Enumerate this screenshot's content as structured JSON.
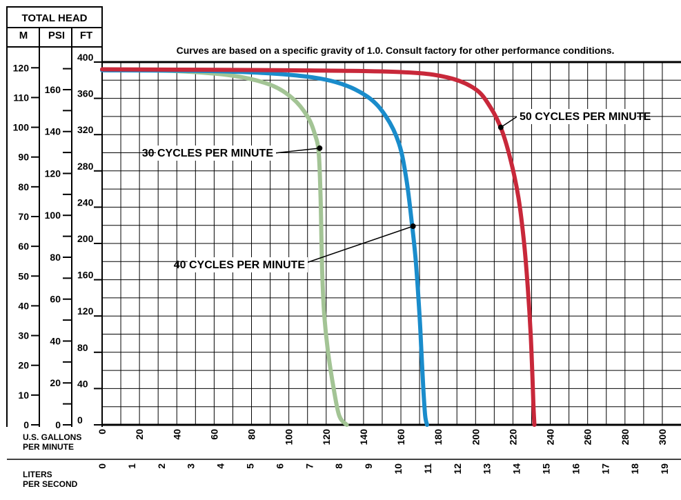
{
  "header": {
    "title": "TOTAL HEAD",
    "col_m": "M",
    "col_psi": "PSI",
    "col_ft": "FT"
  },
  "note": "Curves are based on a specific gravity of 1.0. Consult factory for other performance conditions.",
  "x_label_gpm": [
    "U.S. GALLONS",
    "PER MINUTE"
  ],
  "x_label_lps": [
    "LITERS",
    "PER SECOND"
  ],
  "chart_data": {
    "type": "line",
    "title": "",
    "x_unit_label": "U.S. GALLONS PER MINUTE",
    "y_unit_label": "FT",
    "xlim": [
      0,
      310
    ],
    "ylim": [
      0,
      400
    ],
    "x_ticks": [
      0,
      20,
      40,
      60,
      80,
      100,
      120,
      140,
      160,
      180,
      200,
      220,
      240,
      260,
      280,
      300
    ],
    "y_ticks_ft": [
      0,
      40,
      80,
      120,
      160,
      200,
      240,
      280,
      320,
      360,
      400
    ],
    "y_ticks_m": [
      0,
      10,
      20,
      30,
      40,
      50,
      60,
      70,
      80,
      90,
      100,
      110,
      120
    ],
    "y_ticks_psi": [
      0,
      20,
      40,
      60,
      80,
      100,
      120,
      140,
      160
    ],
    "lps_ticks": [
      0,
      1,
      2,
      3,
      4,
      5,
      6,
      7,
      8,
      9,
      10,
      11,
      12,
      13,
      14,
      15,
      16,
      17,
      18,
      19
    ],
    "grid": true,
    "series": [
      {
        "name": "30 CYCLES PER MINUTE",
        "color": "#a3c495",
        "points": [
          [
            0,
            392
          ],
          [
            40,
            390
          ],
          [
            70,
            385
          ],
          [
            90,
            375
          ],
          [
            102,
            360
          ],
          [
            110,
            340
          ],
          [
            114,
            320
          ],
          [
            116,
            300
          ],
          [
            117,
            250
          ],
          [
            117.5,
            200
          ],
          [
            118,
            160
          ],
          [
            119,
            120
          ],
          [
            121,
            80
          ],
          [
            124,
            40
          ],
          [
            127,
            10
          ],
          [
            131,
            0
          ]
        ]
      },
      {
        "name": "40 CYCLES PER MINUTE",
        "color": "#1a8ccb",
        "points": [
          [
            0,
            391
          ],
          [
            60,
            390
          ],
          [
            100,
            386
          ],
          [
            125,
            378
          ],
          [
            142,
            362
          ],
          [
            152,
            340
          ],
          [
            159,
            310
          ],
          [
            163,
            270
          ],
          [
            166,
            220
          ],
          [
            168,
            180
          ],
          [
            170,
            120
          ],
          [
            171,
            80
          ],
          [
            172,
            40
          ],
          [
            173,
            10
          ],
          [
            174,
            0
          ]
        ]
      },
      {
        "name": "50 CYCLES PER MINUTE",
        "color": "#c8283a",
        "points": [
          [
            0,
            392
          ],
          [
            100,
            391
          ],
          [
            160,
            389
          ],
          [
            185,
            383
          ],
          [
            200,
            370
          ],
          [
            208,
            350
          ],
          [
            214,
            325
          ],
          [
            219,
            290
          ],
          [
            223,
            250
          ],
          [
            226,
            200
          ],
          [
            228,
            150
          ],
          [
            229.5,
            100
          ],
          [
            230.5,
            50
          ],
          [
            231,
            20
          ],
          [
            231.5,
            0
          ]
        ]
      }
    ],
    "annotations": [
      {
        "series": 0,
        "text": "30 CYCLES PER MINUTE",
        "at": [
          116.5,
          305
        ]
      },
      {
        "series": 1,
        "text": "40 CYCLES PER MINUTE",
        "at": [
          166.5,
          219
        ]
      },
      {
        "series": 2,
        "text": "50 CYCLES PER MINUTE",
        "at": [
          213.5,
          328
        ]
      }
    ]
  }
}
